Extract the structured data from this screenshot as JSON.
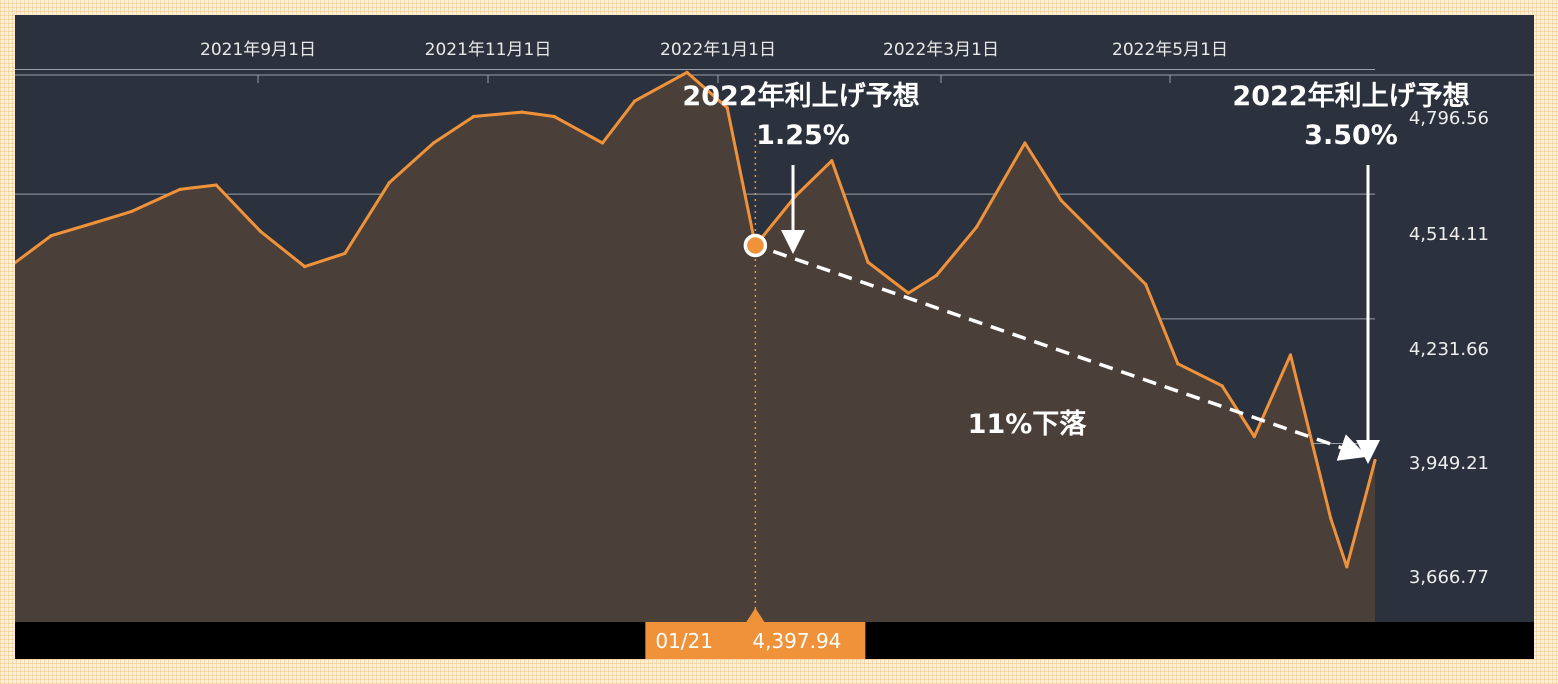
{
  "chart_data": {
    "type": "area",
    "x_ticks": [
      "2021年9月1日",
      "2021年11月1日",
      "2022年1月1日",
      "2022年3月1日",
      "2022年5月1日"
    ],
    "y_ticks": [
      "4,796.56",
      "4,514.11",
      "4,231.66",
      "3,949.21",
      "3,666.77"
    ],
    "y_tick_values": [
      4796.56,
      4514.11,
      4231.66,
      3949.21,
      3666.77
    ],
    "ylim": [
      3545,
      4920
    ],
    "x_range": [
      "2021-07-21",
      "2022-06-24"
    ],
    "x_dates": [
      "2021-07-21",
      "2021-07-30",
      "2021-08-10",
      "2021-08-19",
      "2021-08-31",
      "2021-09-09",
      "2021-09-20",
      "2021-10-01",
      "2021-10-11",
      "2021-10-22",
      "2021-11-02",
      "2021-11-12",
      "2021-11-24",
      "2021-12-02",
      "2021-12-14",
      "2021-12-22",
      "2022-01-04",
      "2022-01-14",
      "2022-01-21",
      "2022-01-31",
      "2022-02-09",
      "2022-02-18",
      "2022-02-28",
      "2022-03-07",
      "2022-03-17",
      "2022-03-29",
      "2022-04-07",
      "2022-04-18",
      "2022-04-28",
      "2022-05-06",
      "2022-05-17",
      "2022-05-25",
      "2022-06-03",
      "2022-06-13",
      "2022-06-17",
      "2022-06-24"
    ],
    "series": [
      {
        "values": [
          4359,
          4420,
          4450,
          4475,
          4525,
          4535,
          4430,
          4350,
          4380,
          4540,
          4630,
          4690,
          4700,
          4690,
          4630,
          4725,
          4790,
          4710,
          4397.94,
          4510,
          4590,
          4360,
          4290,
          4330,
          4440,
          4630,
          4500,
          4400,
          4310,
          4130,
          4080,
          3965,
          4150,
          3780,
          3670,
          3911
        ]
      }
    ],
    "highlight": {
      "date_label": "01/21",
      "value_label": "4,397.94",
      "value": 4397.94
    },
    "annotations": {
      "hike1_line1": "2022年利上げ予想",
      "hike1_line2": "1.25%",
      "hike2_line1": "2022年利上げ予想",
      "hike2_line2": "3.50%",
      "decline": "11%下落"
    },
    "colors": {
      "line": "#f0923a",
      "area": "#4b4039",
      "panel": "#2b323e",
      "grid": "#9aa0a8",
      "baseline": "#000000",
      "page": "#fdf1dc"
    }
  }
}
